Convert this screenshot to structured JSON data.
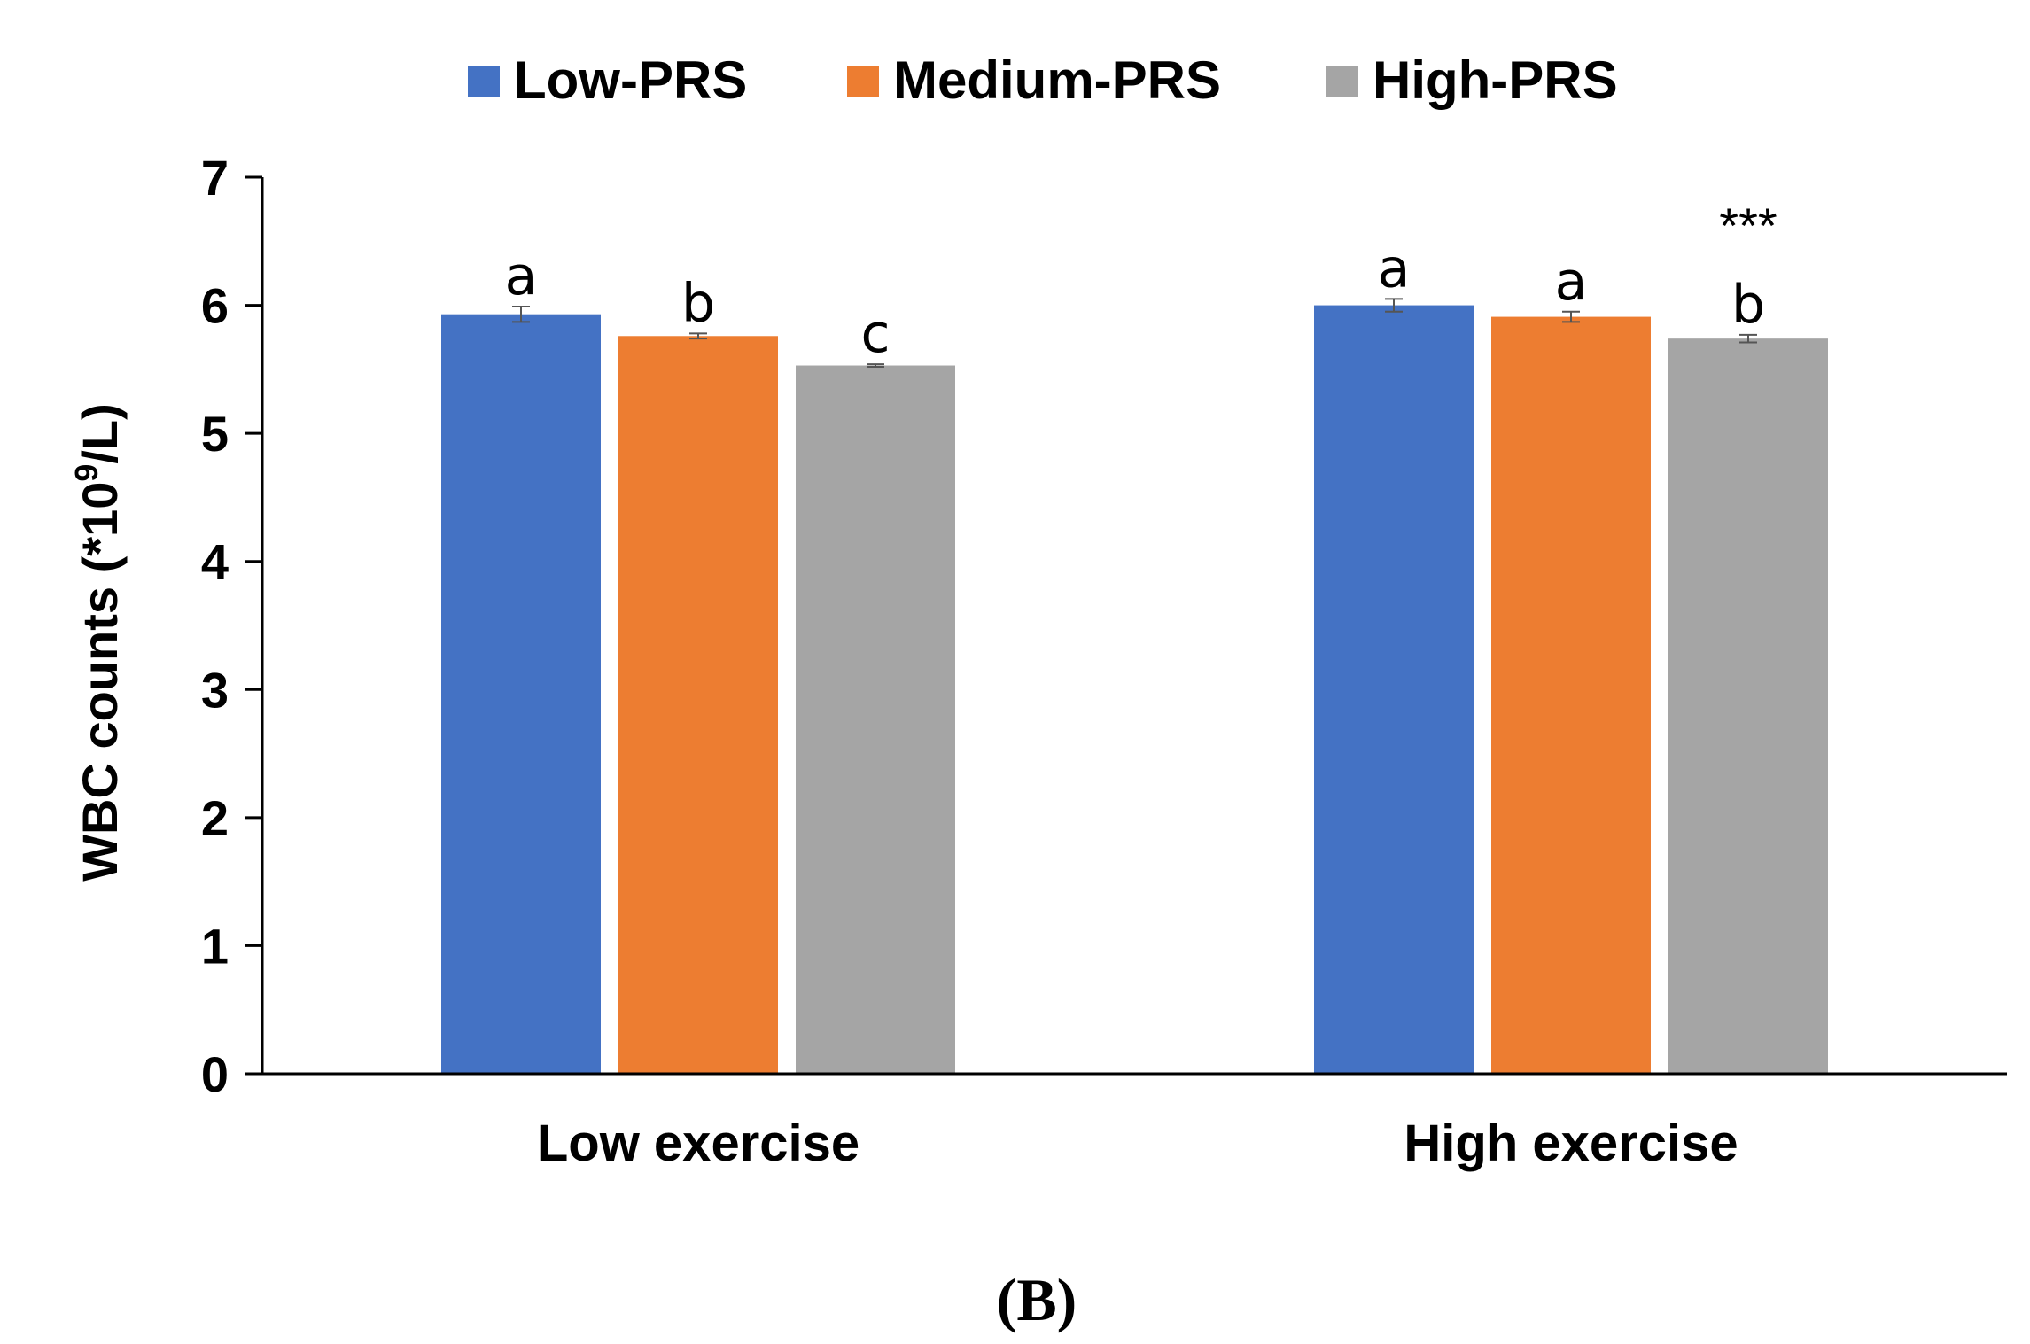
{
  "chart_data": {
    "type": "bar",
    "title": "",
    "xlabel": "",
    "ylabel": "WBC counts (*10⁹/L)",
    "ylabel_parts": {
      "base": "WBC counts (*10",
      "sup": "9",
      "tail": "/L)"
    },
    "ylim": [
      0,
      7
    ],
    "yticks": [
      "0",
      "1",
      "2",
      "3",
      "4",
      "5",
      "6",
      "7"
    ],
    "categories": [
      "Low exercise",
      "High exercise"
    ],
    "legend_position": "top",
    "series": [
      {
        "name": "Low-PRS",
        "color": "#4472c4",
        "values": [
          5.93,
          6.0
        ],
        "errors": [
          0.06,
          0.05
        ],
        "annotations": [
          "a",
          "a"
        ]
      },
      {
        "name": "Medium-PRS",
        "color": "#ed7d31",
        "values": [
          5.76,
          5.91
        ],
        "errors": [
          0.02,
          0.04
        ],
        "annotations": [
          "b",
          "a"
        ]
      },
      {
        "name": "High-PRS",
        "color": "#a5a5a5",
        "values": [
          5.53,
          5.74
        ],
        "errors": [
          0.01,
          0.03
        ],
        "annotations": [
          "c",
          "b"
        ]
      }
    ],
    "group_annotations": [
      "",
      "***"
    ]
  },
  "panel_label": "(B)"
}
